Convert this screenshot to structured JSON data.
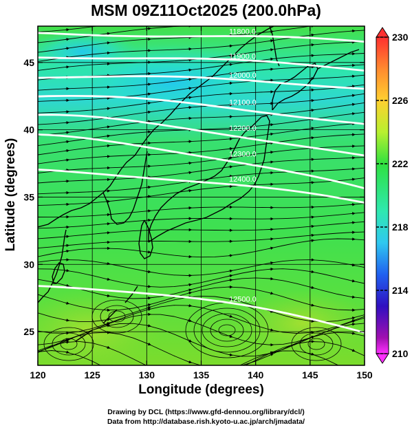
{
  "title": "MSM 09Z11Oct2025 (200.0hPa)",
  "xlabel": "Longitude (degrees)",
  "ylabel": "Latitude  (degrees)",
  "credits": {
    "line1": "Drawing by DCL (https://www.gfd-dennou.org/library/dcl/)",
    "line2": "Data from http://database.rish.kyoto-u.ac.jp/arch/jmadata/"
  },
  "map": {
    "lon_range": [
      120,
      150
    ],
    "lat_range": [
      22.5,
      47.7
    ],
    "x_ticks": [
      "120",
      "125",
      "130",
      "135",
      "140",
      "145",
      "150"
    ],
    "y_ticks": [
      "25",
      "30",
      "35",
      "40",
      "45"
    ],
    "grid": true,
    "fill_variable_colors": {
      "cyan": "#1fe0d8",
      "green": "#2ee43a",
      "yellowgreen": "#7ee030"
    },
    "streamline_color": "#000000",
    "contour_color": "#ffffff",
    "contours": [
      {
        "label": "11800.0",
        "lat_at_150": 46.5,
        "lat_at_120": 47.2
      },
      {
        "label": "11900.0",
        "lat_at_150": 44.5,
        "lat_at_120": 45.5
      },
      {
        "label": "12000.0",
        "lat_at_150": 43.2,
        "lat_at_120": 44.0
      },
      {
        "label": "12100.0",
        "lat_at_150": 40.5,
        "lat_at_120": 42.5
      },
      {
        "label": "12200.0",
        "lat_at_150": 38.0,
        "lat_at_120": 41.0
      },
      {
        "label": "12300.0",
        "lat_at_150": 35.5,
        "lat_at_120": 39.5
      },
      {
        "label": "12400.0",
        "lat_at_150": 34.5,
        "lat_at_120": 37.0
      },
      {
        "label": "12500.0",
        "lat_at_150": 25.0,
        "lat_at_120": 28.5
      }
    ]
  },
  "colorbar": {
    "ticks": [
      "230",
      "226",
      "222",
      "218",
      "214",
      "210"
    ],
    "range": [
      210,
      230
    ],
    "colors": [
      "#ff3030",
      "#ff8a30",
      "#ffd030",
      "#b8f030",
      "#30e040",
      "#30e8b0",
      "#30c8f0",
      "#2060f0",
      "#3010c0",
      "#a010b0",
      "#ff30ff"
    ]
  }
}
